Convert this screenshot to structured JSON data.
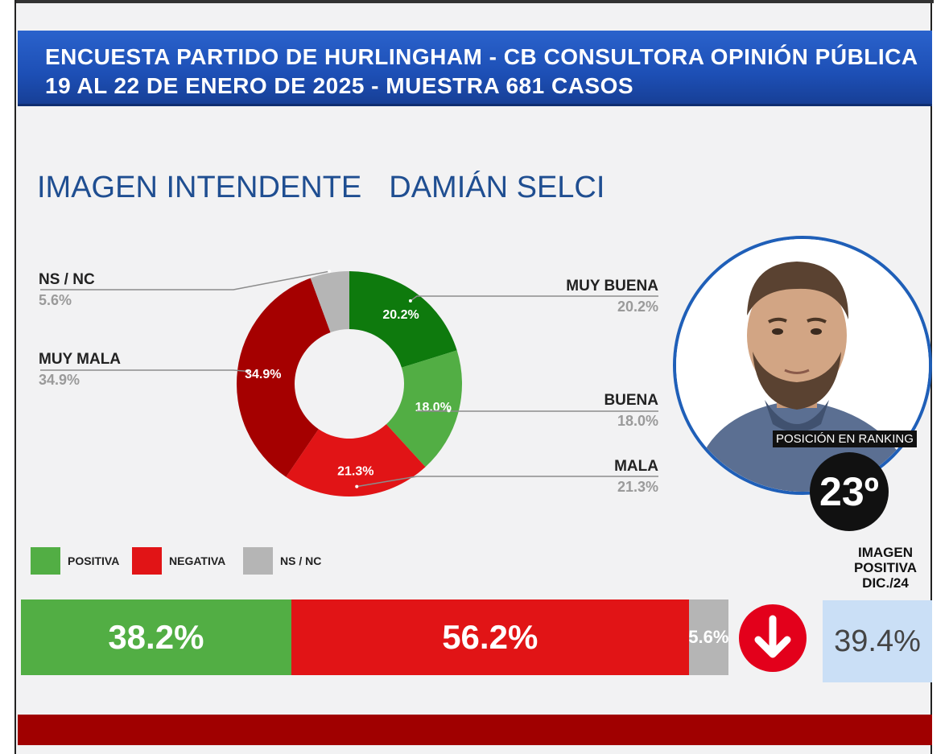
{
  "header": {
    "line1": "ENCUESTA PARTIDO DE HURLINGHAM - CB CONSULTORA OPINIÓN PÚBLICA",
    "line2": "19 AL 22 DE ENERO DE 2025 - MUESTRA 681 CASOS"
  },
  "title": {
    "prefix": "IMAGEN INTENDENTE",
    "name": "DAMIÁN SELCI"
  },
  "ranking": {
    "label": "POSICIÓN EN RANKING",
    "position": "23º"
  },
  "previous": {
    "label_line1": "IMAGEN",
    "label_line2": "POSITIVA",
    "label_line3": "DIC./24",
    "value": "39.4%",
    "trend_icon": "arrow-down-icon"
  },
  "legend": {
    "positive": "POSITIVA",
    "negative": "NEGATIVA",
    "nsnc": "NS / NC"
  },
  "colors": {
    "muy_buena": "#0e7a0d",
    "buena": "#52ae44",
    "mala": "#e11416",
    "muy_mala": "#a50000",
    "nsnc": "#b5b5b5",
    "header": "#1d4fb5",
    "title": "#1f4e91",
    "footer": "#a00000"
  },
  "chart_data": [
    {
      "type": "pie",
      "title": "IMAGEN INTENDENTE   DAMIÁN SELCI",
      "categories": [
        "MUY BUENA",
        "BUENA",
        "MALA",
        "MUY MALA",
        "NS / NC"
      ],
      "values": [
        20.2,
        18.0,
        21.3,
        34.9,
        5.6
      ],
      "labels": [
        "20.2%",
        "18.0%",
        "21.3%",
        "34.9%",
        "5.6%"
      ]
    },
    {
      "type": "bar",
      "categories": [
        "POSITIVA",
        "NEGATIVA",
        "NS / NC"
      ],
      "values": [
        38.2,
        56.2,
        5.6
      ],
      "labels": [
        "38.2%",
        "56.2%",
        "5.6%"
      ]
    }
  ]
}
